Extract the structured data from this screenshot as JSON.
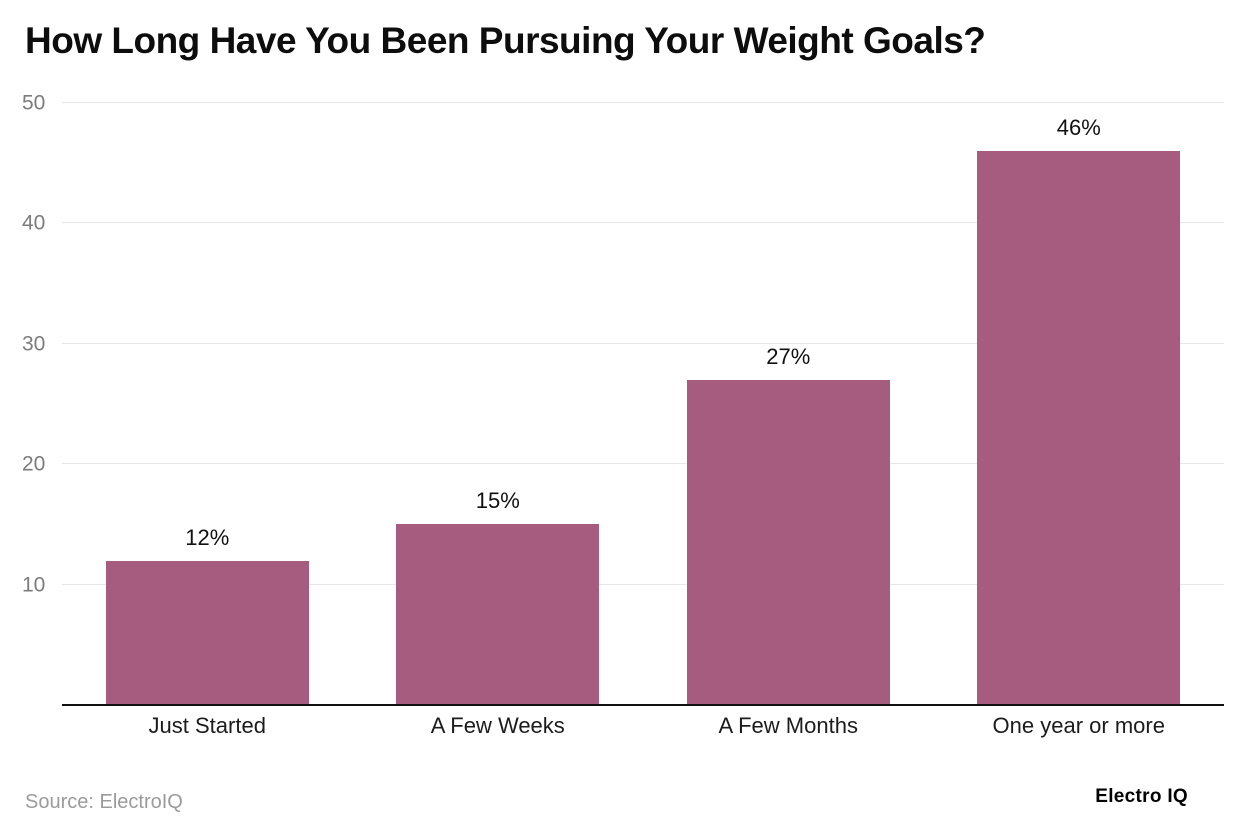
{
  "title": "How Long Have You Been Pursuing Your Weight Goals?",
  "footer": {
    "source": "Source: ElectroIQ",
    "brand": "Electro IQ"
  },
  "colors": {
    "bar": "#A55C7E",
    "gridline": "#E7E7E7",
    "baseline": "#111111"
  },
  "chart_data": {
    "type": "bar",
    "title": "How Long Have You Been Pursuing Your Weight Goals?",
    "categories": [
      "Just Started",
      "A Few Weeks",
      "A Few Months",
      "One year or more"
    ],
    "values": [
      12,
      15,
      27,
      46
    ],
    "value_labels": [
      "12%",
      "15%",
      "27%",
      "46%"
    ],
    "xlabel": "",
    "ylabel": "",
    "ylim": [
      0,
      50
    ],
    "yticks": [
      10,
      20,
      30,
      40,
      50
    ],
    "grid": true,
    "legend": false,
    "bar_color": "#A55C7E"
  }
}
